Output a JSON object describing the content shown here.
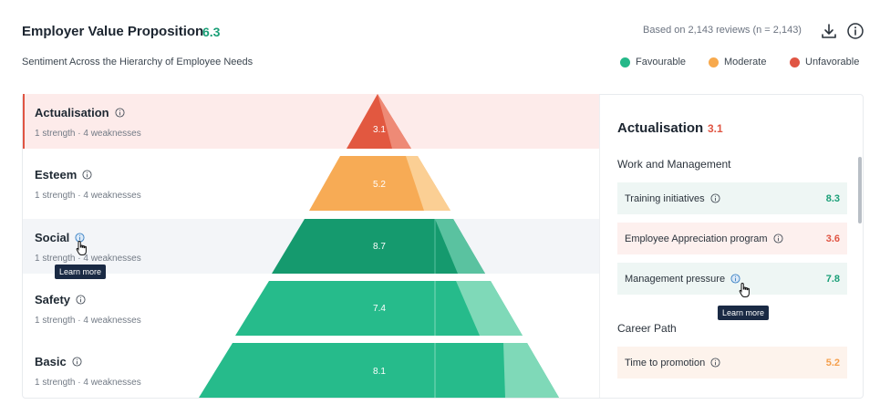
{
  "header": {
    "title": "Employer Value Proposition",
    "score": "6.3",
    "subtitle": "Sentiment Across the Hierarchy of Employee Needs",
    "reviews_text": "Based on 2,143 reviews (n = 2,143)"
  },
  "legend": [
    {
      "label": "Favourable",
      "color": "#25b889"
    },
    {
      "label": "Moderate",
      "color": "#f7a94d"
    },
    {
      "label": "Unfavorable",
      "color": "#e05543"
    }
  ],
  "levels": [
    {
      "name": "Actualisation",
      "sub": "1 strength · 4 weaknesses",
      "score": "3.1",
      "color": "#e25840"
    },
    {
      "name": "Esteem",
      "sub": "1 strength · 4 weaknesses",
      "score": "5.2",
      "color": "#f7ab55"
    },
    {
      "name": "Social",
      "sub": "1 strength · 4 weaknesses",
      "score": "8.7",
      "color": "#159a6e"
    },
    {
      "name": "Safety",
      "sub": "1 strength · 4 weaknesses",
      "score": "7.4",
      "color": "#26bb8b"
    },
    {
      "name": "Basic",
      "sub": "1 strength · 4 weaknesses",
      "score": "8.1",
      "color": "#26bb8b"
    }
  ],
  "tooltips": {
    "social": "Learn more",
    "management": "Learn more"
  },
  "panel": {
    "title": "Actualisation",
    "score": "3.1",
    "groups": [
      {
        "title": "Work and Management",
        "items": [
          {
            "label": "Training initiatives",
            "value": "8.3",
            "tone": "good"
          },
          {
            "label": "Employee Appreciation program",
            "value": "3.6",
            "tone": "bad"
          },
          {
            "label": "Management pressure",
            "value": "7.8",
            "tone": "good"
          }
        ]
      },
      {
        "title": "Career Path",
        "items": [
          {
            "label": "Time to promotion",
            "value": "5.2",
            "tone": "mod"
          }
        ]
      }
    ]
  }
}
